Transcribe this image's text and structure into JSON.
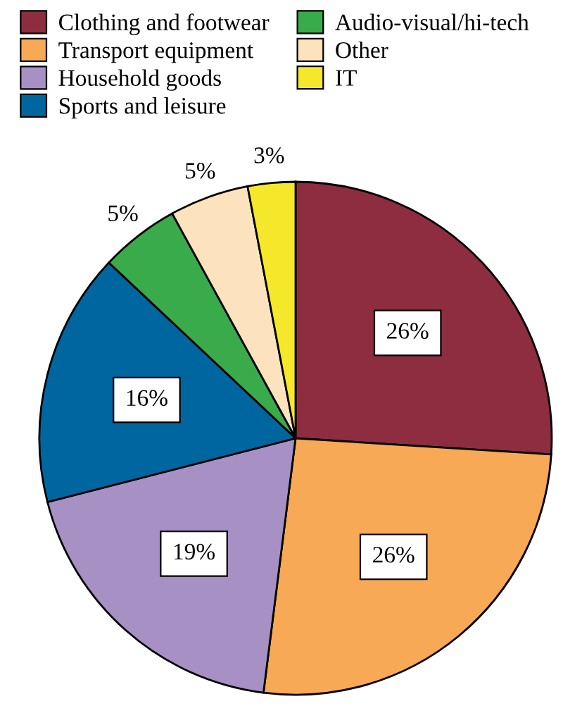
{
  "chart_data": {
    "type": "pie",
    "categories": [
      "Clothing and footwear",
      "Transport equipment",
      "Household goods",
      "Sports and leisure",
      "Audio-visual/hi-tech",
      "Other",
      "IT"
    ],
    "values": [
      26,
      26,
      19,
      16,
      5,
      5,
      3
    ],
    "colors": [
      "#8e2d40",
      "#f7a955",
      "#a690c4",
      "#0066a0",
      "#3aab4a",
      "#fde3bd",
      "#f5e82a"
    ],
    "value_labels": [
      "26%",
      "26%",
      "19%",
      "16%",
      "5%",
      "5%",
      "3%"
    ],
    "legend": "top left"
  }
}
